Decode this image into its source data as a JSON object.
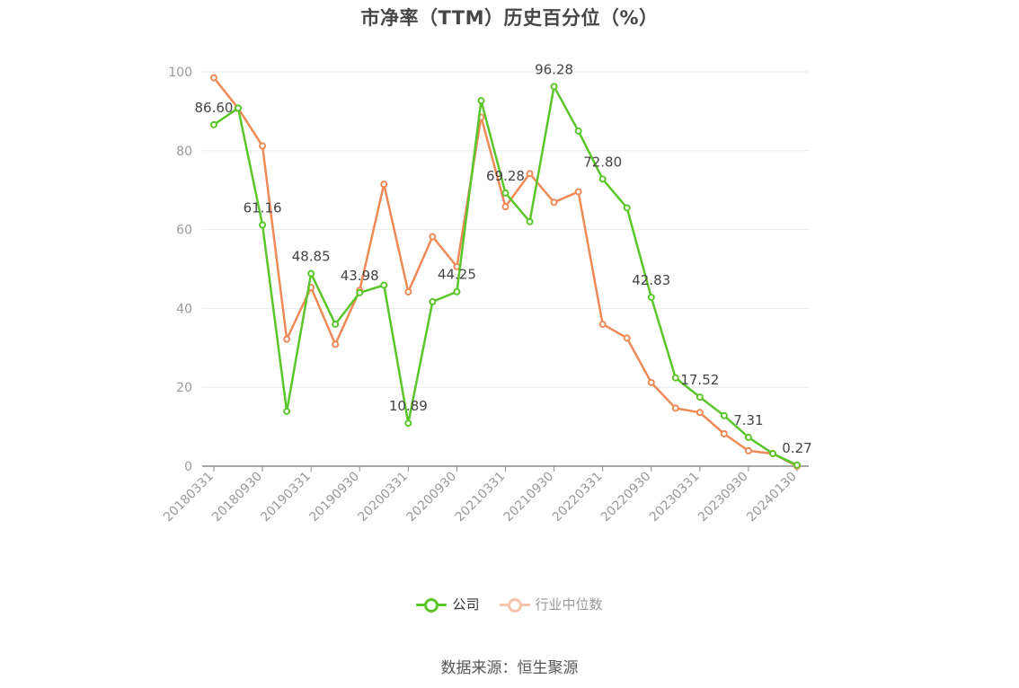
{
  "title": "市净率（TTM）历史百分位（%）",
  "source": "数据来源：恒生聚源",
  "legend": [
    {
      "label": "公司",
      "color": "#5ac62a"
    },
    {
      "label": "行业中位数",
      "color": "#ee8a57"
    }
  ],
  "chart_data": {
    "type": "line",
    "title": "市净率（TTM）历史百分位（%）",
    "x": [
      "20180331",
      "20180630",
      "20180930",
      "20181231",
      "20190331",
      "20190630",
      "20190930",
      "20191231",
      "20200331",
      "20200630",
      "20200930",
      "20201231",
      "20210331",
      "20210630",
      "20210930",
      "20211231",
      "20220331",
      "20220630",
      "20220930",
      "20221231",
      "20230331",
      "20230630",
      "20230930",
      "20231231",
      "20240130"
    ],
    "x_tick_labels": [
      "20180331",
      "20180930",
      "20190331",
      "20190930",
      "20200331",
      "20200930",
      "20210331",
      "20210930",
      "20220331",
      "20220930",
      "20230331",
      "20230930",
      "20240130"
    ],
    "y_ticks": [
      0,
      20,
      40,
      60,
      80,
      100
    ],
    "ylim": [
      0,
      100
    ],
    "grid": true,
    "legend_position": "bottom",
    "series": [
      {
        "name": "公司",
        "color": "#5ac62a",
        "values": [
          86.6,
          90.8,
          61.16,
          13.9,
          48.85,
          36.0,
          43.98,
          45.9,
          10.89,
          41.7,
          44.25,
          92.7,
          69.28,
          62.0,
          96.28,
          85.0,
          72.8,
          65.5,
          42.83,
          22.4,
          17.52,
          12.8,
          7.31,
          3.2,
          0.27
        ],
        "labels": [
          "86.60",
          "",
          "61.16",
          "",
          "48.85",
          "",
          "43.98",
          "",
          "10.89",
          "",
          "44.25",
          "",
          "69.28",
          "",
          "96.28",
          "",
          "72.80",
          "",
          "42.83",
          "",
          "17.52",
          "",
          "7.31",
          "",
          "0.27"
        ]
      },
      {
        "name": "行业中位数",
        "color": "#ee8a57",
        "values": [
          98.5,
          90.8,
          81.2,
          32.2,
          45.3,
          30.9,
          44.6,
          71.5,
          44.2,
          58.2,
          50.6,
          88.5,
          65.8,
          74.2,
          66.9,
          69.6,
          36.0,
          32.5,
          21.2,
          14.7,
          13.6,
          8.2,
          3.9,
          3.2,
          0.0
        ]
      }
    ]
  }
}
